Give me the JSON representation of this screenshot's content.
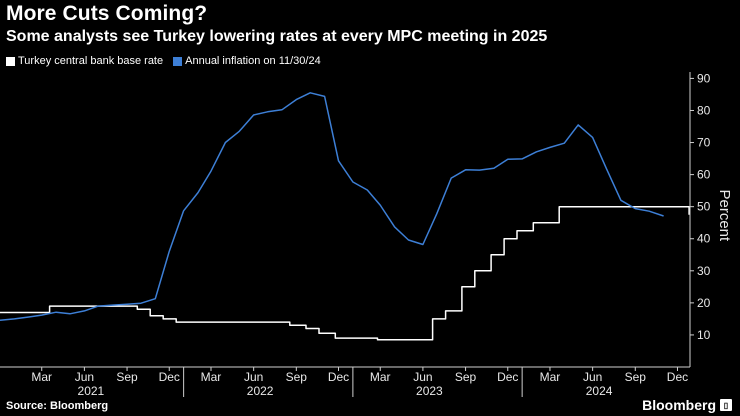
{
  "header": {
    "title": "More Cuts Coming?",
    "subtitle": "Some analysts see Turkey lowering rates at every MPC meeting in 2025"
  },
  "footer": {
    "source": "Source: Bloomberg",
    "brand": "Bloomberg",
    "brand_icon": "bloomberg-badge-icon"
  },
  "chart_data": {
    "type": "line",
    "ylabel": "Percent",
    "ylim": [
      0,
      92
    ],
    "y_ticks": [
      10,
      20,
      30,
      40,
      50,
      60,
      70,
      80,
      90
    ],
    "xlim": [
      "2020-12-01",
      "2024-12-28"
    ],
    "x_ticks": [
      {
        "date": "2021-03-01",
        "label": "Mar"
      },
      {
        "date": "2021-06-01",
        "label": "Jun"
      },
      {
        "date": "2021-09-01",
        "label": "Sep"
      },
      {
        "date": "2021-12-01",
        "label": "Dec"
      },
      {
        "date": "2022-03-01",
        "label": "Mar"
      },
      {
        "date": "2022-06-01",
        "label": "Jun"
      },
      {
        "date": "2022-09-01",
        "label": "Sep"
      },
      {
        "date": "2022-12-01",
        "label": "Dec"
      },
      {
        "date": "2023-03-01",
        "label": "Mar"
      },
      {
        "date": "2023-06-01",
        "label": "Jun"
      },
      {
        "date": "2023-09-01",
        "label": "Sep"
      },
      {
        "date": "2023-12-01",
        "label": "Dec"
      },
      {
        "date": "2024-03-01",
        "label": "Mar"
      },
      {
        "date": "2024-06-01",
        "label": "Jun"
      },
      {
        "date": "2024-09-01",
        "label": "Sep"
      },
      {
        "date": "2024-12-01",
        "label": "Dec"
      }
    ],
    "year_labels": [
      {
        "date": "2021-06-15",
        "label": "2021"
      },
      {
        "date": "2022-06-15",
        "label": "2022"
      },
      {
        "date": "2023-06-15",
        "label": "2023"
      },
      {
        "date": "2024-06-15",
        "label": "2024"
      }
    ],
    "year_separators": [
      "2022-01-01",
      "2023-01-01",
      "2024-01-01"
    ],
    "grid": false,
    "legend_position": "top-left",
    "series": [
      {
        "name": "Turkey central bank base rate",
        "color": "#ffffff",
        "step": true,
        "points": [
          [
            "2020-12-01",
            17
          ],
          [
            "2021-03-18",
            19
          ],
          [
            "2021-09-23",
            18
          ],
          [
            "2021-10-21",
            16
          ],
          [
            "2021-11-18",
            15
          ],
          [
            "2021-12-16",
            14
          ],
          [
            "2022-08-18",
            13
          ],
          [
            "2022-09-22",
            12
          ],
          [
            "2022-10-20",
            10.5
          ],
          [
            "2022-11-24",
            9
          ],
          [
            "2023-02-23",
            8.5
          ],
          [
            "2023-06-22",
            15
          ],
          [
            "2023-07-20",
            17.5
          ],
          [
            "2023-08-24",
            25
          ],
          [
            "2023-09-21",
            30
          ],
          [
            "2023-10-26",
            35
          ],
          [
            "2023-11-23",
            40
          ],
          [
            "2023-12-21",
            42.5
          ],
          [
            "2024-01-25",
            45
          ],
          [
            "2024-03-21",
            50
          ],
          [
            "2024-12-26",
            47.5
          ]
        ]
      },
      {
        "name": "Annual inflation on 11/30/24",
        "color": "#3d7fd6",
        "step": false,
        "points": [
          [
            "2020-12-01",
            14.6
          ],
          [
            "2021-01-01",
            15.0
          ],
          [
            "2021-02-01",
            15.6
          ],
          [
            "2021-03-01",
            16.2
          ],
          [
            "2021-04-01",
            17.1
          ],
          [
            "2021-05-01",
            16.6
          ],
          [
            "2021-06-01",
            17.5
          ],
          [
            "2021-07-01",
            19.0
          ],
          [
            "2021-08-01",
            19.3
          ],
          [
            "2021-09-01",
            19.6
          ],
          [
            "2021-10-01",
            19.9
          ],
          [
            "2021-11-01",
            21.3
          ],
          [
            "2021-12-01",
            36.1
          ],
          [
            "2022-01-01",
            48.7
          ],
          [
            "2022-02-01",
            54.4
          ],
          [
            "2022-03-01",
            61.1
          ],
          [
            "2022-04-01",
            70.0
          ],
          [
            "2022-05-01",
            73.5
          ],
          [
            "2022-06-01",
            78.6
          ],
          [
            "2022-07-01",
            79.6
          ],
          [
            "2022-08-01",
            80.2
          ],
          [
            "2022-09-01",
            83.4
          ],
          [
            "2022-10-01",
            85.5
          ],
          [
            "2022-11-01",
            84.4
          ],
          [
            "2022-12-01",
            64.3
          ],
          [
            "2023-01-01",
            57.7
          ],
          [
            "2023-02-01",
            55.2
          ],
          [
            "2023-03-01",
            50.5
          ],
          [
            "2023-04-01",
            43.7
          ],
          [
            "2023-05-01",
            39.6
          ],
          [
            "2023-06-01",
            38.2
          ],
          [
            "2023-07-01",
            47.8
          ],
          [
            "2023-08-01",
            58.9
          ],
          [
            "2023-09-01",
            61.5
          ],
          [
            "2023-10-01",
            61.4
          ],
          [
            "2023-11-01",
            62.0
          ],
          [
            "2023-12-01",
            64.8
          ],
          [
            "2024-01-01",
            64.9
          ],
          [
            "2024-02-01",
            67.1
          ],
          [
            "2024-03-01",
            68.5
          ],
          [
            "2024-04-01",
            69.8
          ],
          [
            "2024-05-01",
            75.5
          ],
          [
            "2024-06-01",
            71.6
          ],
          [
            "2024-07-01",
            61.8
          ],
          [
            "2024-08-01",
            52.0
          ],
          [
            "2024-09-01",
            49.4
          ],
          [
            "2024-10-01",
            48.6
          ],
          [
            "2024-11-01",
            47.1
          ]
        ]
      }
    ]
  }
}
